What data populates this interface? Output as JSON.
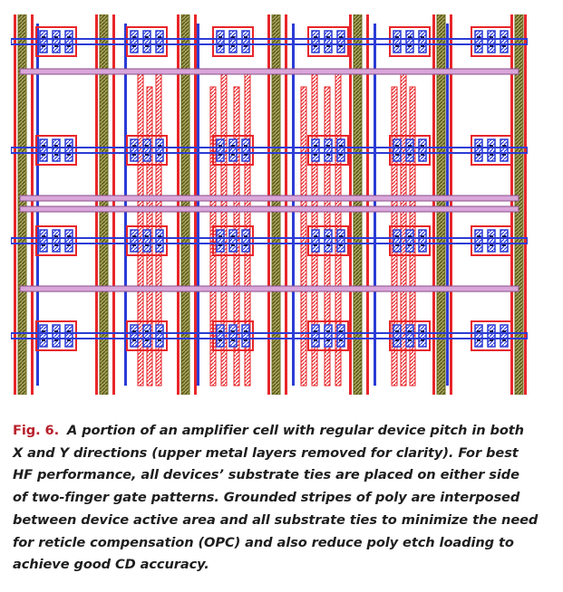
{
  "figure": {
    "label": "Fig. 6.",
    "caption": "A portion of an amplifier cell with regular device pitch in both X and Y directions (upper metal layers removed for clarity). For best HF performance, all devices’ substrate ties are placed on either side of two-finger gate patterns. Grounded stripes of poly are interposed between device active area and all substrate ties to minimize the need for reticle compensation (OPC) and also reduce poly etch loading to achieve good CD accuracy."
  },
  "layout_colors": {
    "poly": "#e8262a",
    "metal": "#2b3cd6",
    "active": "#6b6a1e",
    "contact": "#1a1a4a",
    "interconnect": "#d9a6d9",
    "label": "#b8202b"
  }
}
